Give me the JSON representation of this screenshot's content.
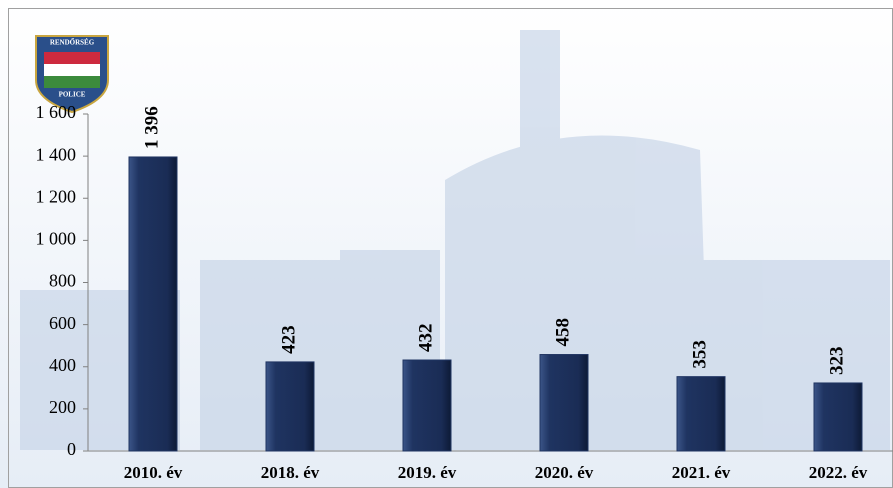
{
  "logo": {
    "top": "RENDŐRSÉG",
    "bottom": "POLICE"
  },
  "chart_data": {
    "type": "bar",
    "categories": [
      "2010. év",
      "2018. év",
      "2019. év",
      "2020. év",
      "2021. év",
      "2022. év"
    ],
    "values": [
      1396,
      423,
      432,
      458,
      353,
      323
    ],
    "value_labels": [
      "1 396",
      "423",
      "432",
      "458",
      "353",
      "323"
    ],
    "color": "#1f3461",
    "ylim": [
      0,
      1600
    ],
    "yticks": [
      0,
      200,
      400,
      600,
      800,
      {
        "value": 1000,
        "label": "1 000"
      },
      {
        "value": 1200,
        "label": "1 200"
      },
      {
        "value": 1400,
        "label": "1 400"
      },
      {
        "value": 1600,
        "label": "1 600"
      }
    ],
    "grid": false
  }
}
